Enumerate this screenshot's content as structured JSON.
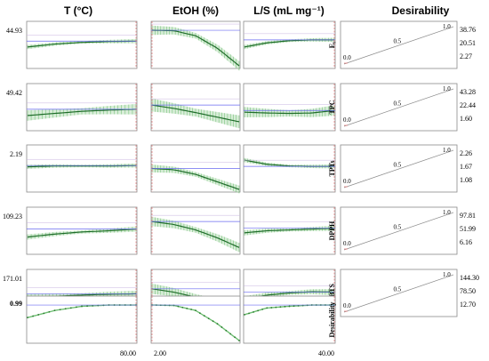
{
  "chart_data": {
    "type": "line",
    "title": "",
    "factors": [
      {
        "name": "T (°C)",
        "range_end_label": "80.00",
        "range_start_label": ""
      },
      {
        "name": "EtOH (%)",
        "range_end_label": "",
        "range_start_label": "2.00"
      },
      {
        "name": "L/S (mL mg⁻¹)",
        "range_end_label": "40.00",
        "range_start_label": ""
      }
    ],
    "desirability_title": "Desirability",
    "responses": [
      {
        "name": "Eᵧ",
        "current_value": "44.93",
        "desirability_ticks": [
          "38.76",
          "20.51",
          "2.27"
        ],
        "curves": [
          [
            0.45,
            0.52,
            0.56,
            0.58,
            0.59
          ],
          [
            0.85,
            0.84,
            0.72,
            0.42,
            0.0
          ],
          [
            0.45,
            0.55,
            0.6,
            0.62,
            0.62
          ]
        ],
        "ci_halfwidth": [
          0.08,
          0.18,
          0.08
        ]
      },
      {
        "name": "TPC",
        "current_value": "49.42",
        "desirability_ticks": [
          "43.28",
          "22.44",
          "1.60"
        ],
        "curves": [
          [
            0.3,
            0.35,
            0.4,
            0.43,
            0.45
          ],
          [
            0.55,
            0.47,
            0.37,
            0.26,
            0.15
          ],
          [
            0.38,
            0.36,
            0.35,
            0.36,
            0.42
          ]
        ],
        "ci_halfwidth": [
          0.2,
          0.25,
          0.2
        ]
      },
      {
        "name": "TPTs",
        "current_value": "2.19",
        "desirability_ticks": [
          "2.26",
          "1.67",
          "1.08"
        ],
        "curves": [
          [
            0.54,
            0.56,
            0.56,
            0.56,
            0.57
          ],
          [
            0.5,
            0.47,
            0.36,
            0.18,
            0.0
          ],
          [
            0.7,
            0.6,
            0.56,
            0.55,
            0.55
          ]
        ],
        "ci_halfwidth": [
          0.08,
          0.15,
          0.08
        ]
      },
      {
        "name": "DPPH",
        "current_value": "109.23",
        "desirability_ticks": [
          "97.81",
          "51.99",
          "6.16"
        ],
        "curves": [
          [
            0.35,
            0.42,
            0.47,
            0.5,
            0.54
          ],
          [
            0.72,
            0.65,
            0.52,
            0.33,
            0.1
          ],
          [
            0.45,
            0.5,
            0.52,
            0.54,
            0.56
          ]
        ],
        "ci_halfwidth": [
          0.1,
          0.18,
          0.1
        ]
      },
      {
        "name": "ABTS",
        "current_value": "171.01",
        "desirability_ticks": [
          "144.30",
          "78.50",
          "12.70"
        ],
        "curves": [
          [
            0.4,
            0.42,
            0.45,
            0.47,
            0.48
          ],
          [
            0.6,
            0.52,
            0.4,
            0.25,
            0.08
          ],
          [
            0.35,
            0.45,
            0.5,
            0.53,
            0.52
          ]
        ],
        "ci_halfwidth": [
          0.12,
          0.2,
          0.12
        ]
      }
    ],
    "overall": {
      "name": "Desirability",
      "current_value": "0.99",
      "curves": [
        [
          0.55,
          0.72,
          0.82,
          0.85,
          0.85
        ],
        [
          0.85,
          0.84,
          0.72,
          0.4,
          0.0
        ],
        [
          0.62,
          0.78,
          0.82,
          0.85,
          0.85
        ]
      ]
    },
    "desirability_function_labels": [
      "0.0",
      "0.5",
      "1.0"
    ]
  }
}
